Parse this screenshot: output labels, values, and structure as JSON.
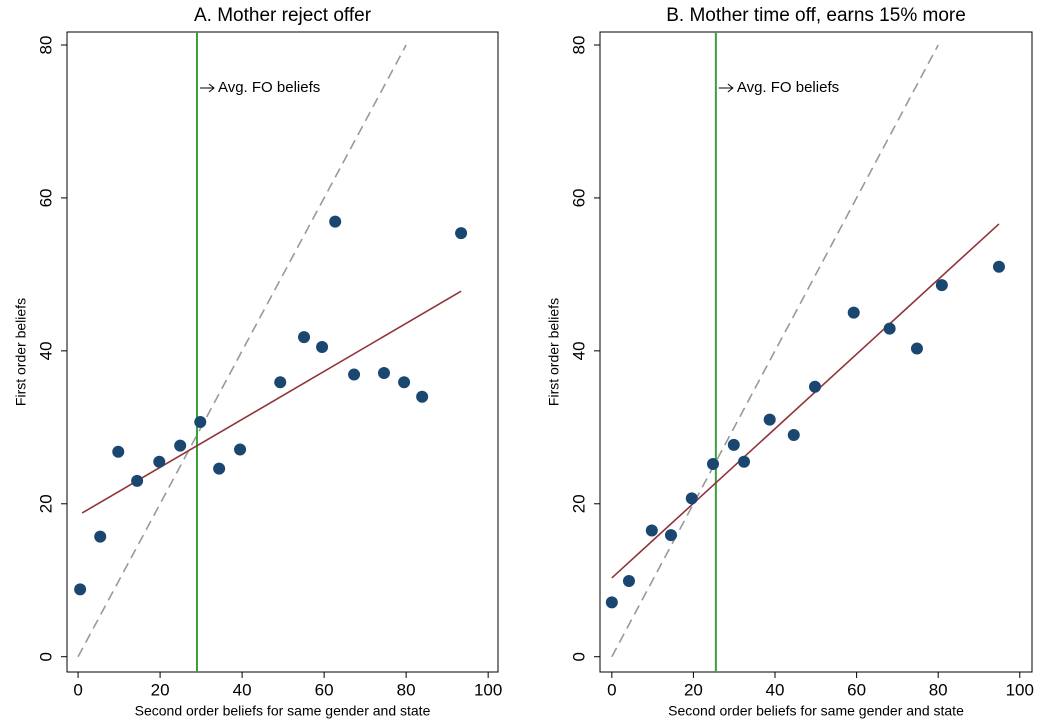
{
  "chart_data": [
    {
      "type": "scatter",
      "title": "A. Mother reject offer",
      "x_label": "Second order beliefs for same gender and state",
      "y_label": "First order beliefs",
      "x": [
        0.5,
        5.4,
        9.8,
        14.4,
        19.8,
        24.9,
        29.8,
        34.4,
        39.5,
        49.3,
        55.1,
        59.5,
        62.7,
        67.3,
        74.6,
        79.5,
        83.9,
        93.4
      ],
      "y": [
        8.8,
        15.7,
        26.8,
        23.0,
        25.5,
        27.6,
        30.7,
        24.6,
        27.1,
        35.9,
        41.8,
        40.5,
        56.9,
        36.9,
        37.1,
        35.9,
        34.0,
        55.4
      ],
      "color": "#1a476f",
      "fit_line": {
        "x": [
          1,
          93.4
        ],
        "y": [
          18.8,
          47.8
        ],
        "color": "#90353b"
      },
      "reference_line": {
        "x": [
          0,
          80
        ],
        "y": [
          0,
          80
        ],
        "color": "#999999"
      },
      "vline": {
        "x": 29.0,
        "label": "Avg. FO beliefs",
        "color": "#3aa03a"
      },
      "xlim": [
        -2.7,
        102.4
      ],
      "ylim": [
        -2.0,
        81.7
      ],
      "xticks": [
        0,
        20,
        40,
        60,
        80,
        100
      ],
      "yticks": [
        0,
        20,
        40,
        60,
        80
      ]
    },
    {
      "type": "scatter",
      "title": "B. Mother time off, earns 15% more",
      "x_label": "Second order beliefs for same gender and state",
      "y_label": "First order beliefs",
      "x": [
        0,
        4.2,
        9.8,
        14.5,
        19.6,
        24.8,
        29.9,
        32.4,
        38.7,
        44.6,
        49.8,
        59.3,
        68.1,
        74.8,
        80.9,
        94.9
      ],
      "y": [
        7.1,
        9.9,
        16.5,
        15.9,
        20.7,
        25.2,
        27.7,
        25.5,
        31.0,
        29.0,
        35.3,
        45.0,
        42.9,
        40.3,
        48.6,
        51.0
      ],
      "color": "#1a476f",
      "fit_line": {
        "x": [
          0,
          94.9
        ],
        "y": [
          10.3,
          56.6
        ],
        "color": "#90353b"
      },
      "reference_line": {
        "x": [
          0,
          80
        ],
        "y": [
          0,
          80
        ],
        "color": "#999999"
      },
      "vline": {
        "x": 25.5,
        "label": "Avg. FO beliefs",
        "color": "#3aa03a"
      },
      "xlim": [
        -2.9,
        103
      ],
      "ylim": [
        -2.0,
        81.7
      ],
      "xticks": [
        0,
        20,
        40,
        60,
        80,
        100
      ],
      "yticks": [
        0,
        20,
        40,
        60,
        80
      ]
    }
  ]
}
